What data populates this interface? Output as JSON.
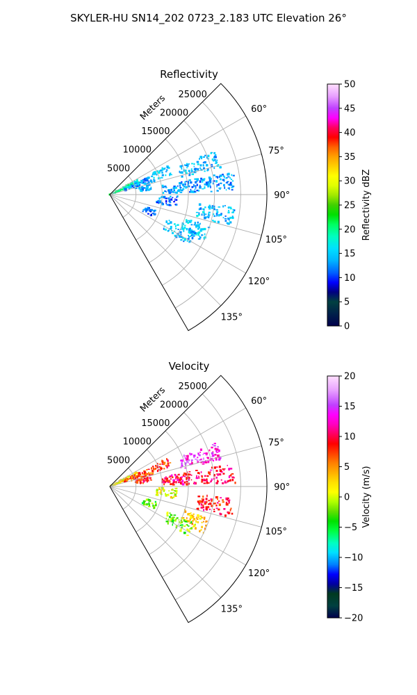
{
  "figure": {
    "suptitle": "SKYLER-HU  SN14_202  0723_2.183 UTC Elevation 26°"
  },
  "chart_data": [
    {
      "type": "heatmap",
      "subtype": "polar-wedge",
      "title": "Reflectivity",
      "radial_label": "Meters",
      "radial_ticks": [
        5000,
        10000,
        15000,
        20000,
        25000
      ],
      "radial_tick_labels": [
        "5000",
        "10000",
        "15000",
        "20000",
        "25000"
      ],
      "r_max": 30000,
      "theta_range_deg": [
        45,
        150
      ],
      "angular_ticks": [
        60,
        75,
        90,
        105,
        120,
        135
      ],
      "angular_tick_labels": [
        "60°",
        "75°",
        "90°",
        "105°",
        "120°",
        "135°"
      ],
      "grid": true,
      "colorbar": {
        "label": "Reflectivity dBZ",
        "range": [
          0,
          50
        ],
        "ticks": [
          0,
          5,
          10,
          15,
          20,
          25,
          30,
          35,
          40,
          45,
          50
        ],
        "tick_labels": [
          "0",
          "5",
          "10",
          "15",
          "20",
          "25",
          "30",
          "35",
          "40",
          "45",
          "50"
        ]
      },
      "echo_clusters": [
        {
          "az": 65,
          "r_min": 0,
          "r_max": 6000,
          "value": 19
        },
        {
          "az": 70,
          "r_min": 3000,
          "r_max": 9000,
          "value": 13
        },
        {
          "az": 72,
          "r_min": 14000,
          "r_max": 22000,
          "value": 14
        },
        {
          "az": 68,
          "r_min": 9000,
          "r_max": 12500,
          "value": 14
        },
        {
          "az": 80,
          "r_min": 5000,
          "r_max": 8000,
          "value": 13
        },
        {
          "az": 96,
          "r_min": 9000,
          "r_max": 13000,
          "value": 12
        },
        {
          "az": 113,
          "r_min": 7000,
          "r_max": 9500,
          "value": 11
        },
        {
          "az": 112,
          "r_min": 15000,
          "r_max": 20000,
          "value": 15
        },
        {
          "az": 118,
          "r_min": 12000,
          "r_max": 18000,
          "value": 14
        },
        {
          "az": 84,
          "r_min": 10000,
          "r_max": 24000,
          "value": 13
        },
        {
          "az": 100,
          "r_min": 17000,
          "r_max": 24000,
          "value": 14
        }
      ]
    },
    {
      "type": "heatmap",
      "subtype": "polar-wedge",
      "title": "Velocity",
      "radial_label": "Meters",
      "radial_ticks": [
        5000,
        10000,
        15000,
        20000,
        25000
      ],
      "radial_tick_labels": [
        "5000",
        "10000",
        "15000",
        "20000",
        "25000"
      ],
      "r_max": 30000,
      "theta_range_deg": [
        45,
        150
      ],
      "angular_ticks": [
        60,
        75,
        90,
        105,
        120,
        135
      ],
      "angular_tick_labels": [
        "60°",
        "75°",
        "90°",
        "105°",
        "120°",
        "135°"
      ],
      "grid": true,
      "colorbar": {
        "label": "Velocity (m/s)",
        "range": [
          -20,
          20
        ],
        "ticks": [
          -20,
          -15,
          -10,
          -5,
          0,
          5,
          10,
          15,
          20
        ],
        "tick_labels": [
          "−20",
          "−15",
          "−10",
          "−5",
          "0",
          "5",
          "10",
          "15",
          "20"
        ]
      },
      "echo_clusters": [
        {
          "az": 65,
          "r_min": 0,
          "r_max": 6000,
          "value": 2
        },
        {
          "az": 70,
          "r_min": 3000,
          "r_max": 9000,
          "value": 7
        },
        {
          "az": 68,
          "r_min": 9000,
          "r_max": 12500,
          "value": 8
        },
        {
          "az": 72,
          "r_min": 14000,
          "r_max": 22000,
          "value": 14
        },
        {
          "az": 80,
          "r_min": 5000,
          "r_max": 8000,
          "value": 9
        },
        {
          "az": 84,
          "r_min": 10000,
          "r_max": 24000,
          "value": 10
        },
        {
          "az": 96,
          "r_min": 9000,
          "r_max": 13000,
          "value": 1
        },
        {
          "az": 113,
          "r_min": 7000,
          "r_max": 9500,
          "value": -3
        },
        {
          "az": 112,
          "r_min": 15000,
          "r_max": 20000,
          "value": 3
        },
        {
          "az": 118,
          "r_min": 12000,
          "r_max": 18000,
          "value": -2
        },
        {
          "az": 100,
          "r_min": 17000,
          "r_max": 24000,
          "value": 9
        }
      ]
    }
  ]
}
